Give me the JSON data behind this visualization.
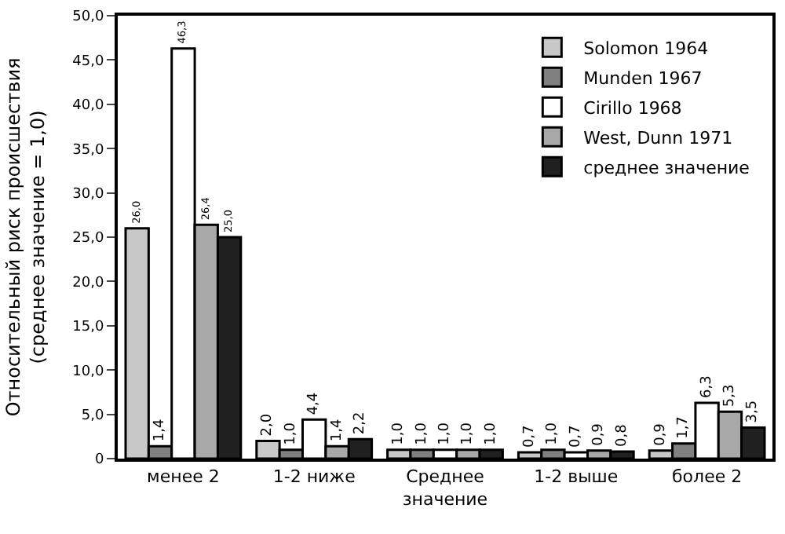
{
  "chart_data": {
    "type": "bar",
    "ylabel": "Относительный риск происшествия\n(среднее значение = 1,0)",
    "categories": [
      "менее 2",
      "1-2 ниже",
      "Среднее\nзначение",
      "1-2 выше",
      "более 2"
    ],
    "series": [
      {
        "name": "Solomon 1964",
        "color": "#c8c8c8",
        "values": [
          26.0,
          2.0,
          1.0,
          0.7,
          0.9
        ],
        "value_labels": [
          "26,0",
          "2,0",
          "1,0",
          "0,7",
          "0,9"
        ]
      },
      {
        "name": "Munden 1967",
        "color": "#808080",
        "values": [
          1.4,
          1.0,
          1.0,
          1.0,
          1.7
        ],
        "value_labels": [
          "1,4",
          "1,0",
          "1,0",
          "1,0",
          "1,7"
        ]
      },
      {
        "name": "Cirillo 1968",
        "color": "#ffffff",
        "values": [
          46.3,
          4.4,
          1.0,
          0.7,
          6.3
        ],
        "value_labels": [
          "46,3",
          "4,4",
          "1,0",
          "0,7",
          "6,3"
        ]
      },
      {
        "name": "West, Dunn 1971",
        "color": "#a8a8a8",
        "values": [
          26.4,
          1.4,
          1.0,
          0.9,
          5.3
        ],
        "value_labels": [
          "26,4",
          "1,4",
          "1,0",
          "0,9",
          "5,3"
        ]
      },
      {
        "name": "среднее значение",
        "color": "#202020",
        "values": [
          25.0,
          2.2,
          1.0,
          0.8,
          3.5
        ],
        "value_labels": [
          "25,0",
          "2,2",
          "1,0",
          "0,8",
          "3,5"
        ]
      }
    ],
    "ylim": [
      0,
      50
    ],
    "yticks": [
      0,
      {
        "value": 5,
        "label": "5,0"
      },
      {
        "value": 10,
        "label": "10,0"
      },
      {
        "value": 15,
        "label": "15,0"
      },
      {
        "value": 20,
        "label": "20,0"
      },
      {
        "value": 25,
        "label": "25,0"
      },
      {
        "value": 30,
        "label": "30,0"
      },
      {
        "value": 35,
        "label": "35,0"
      },
      {
        "value": 40,
        "label": "40,0"
      },
      {
        "value": 45,
        "label": "45,0"
      },
      {
        "value": 50,
        "label": "50,0"
      }
    ],
    "legend": "top right"
  }
}
